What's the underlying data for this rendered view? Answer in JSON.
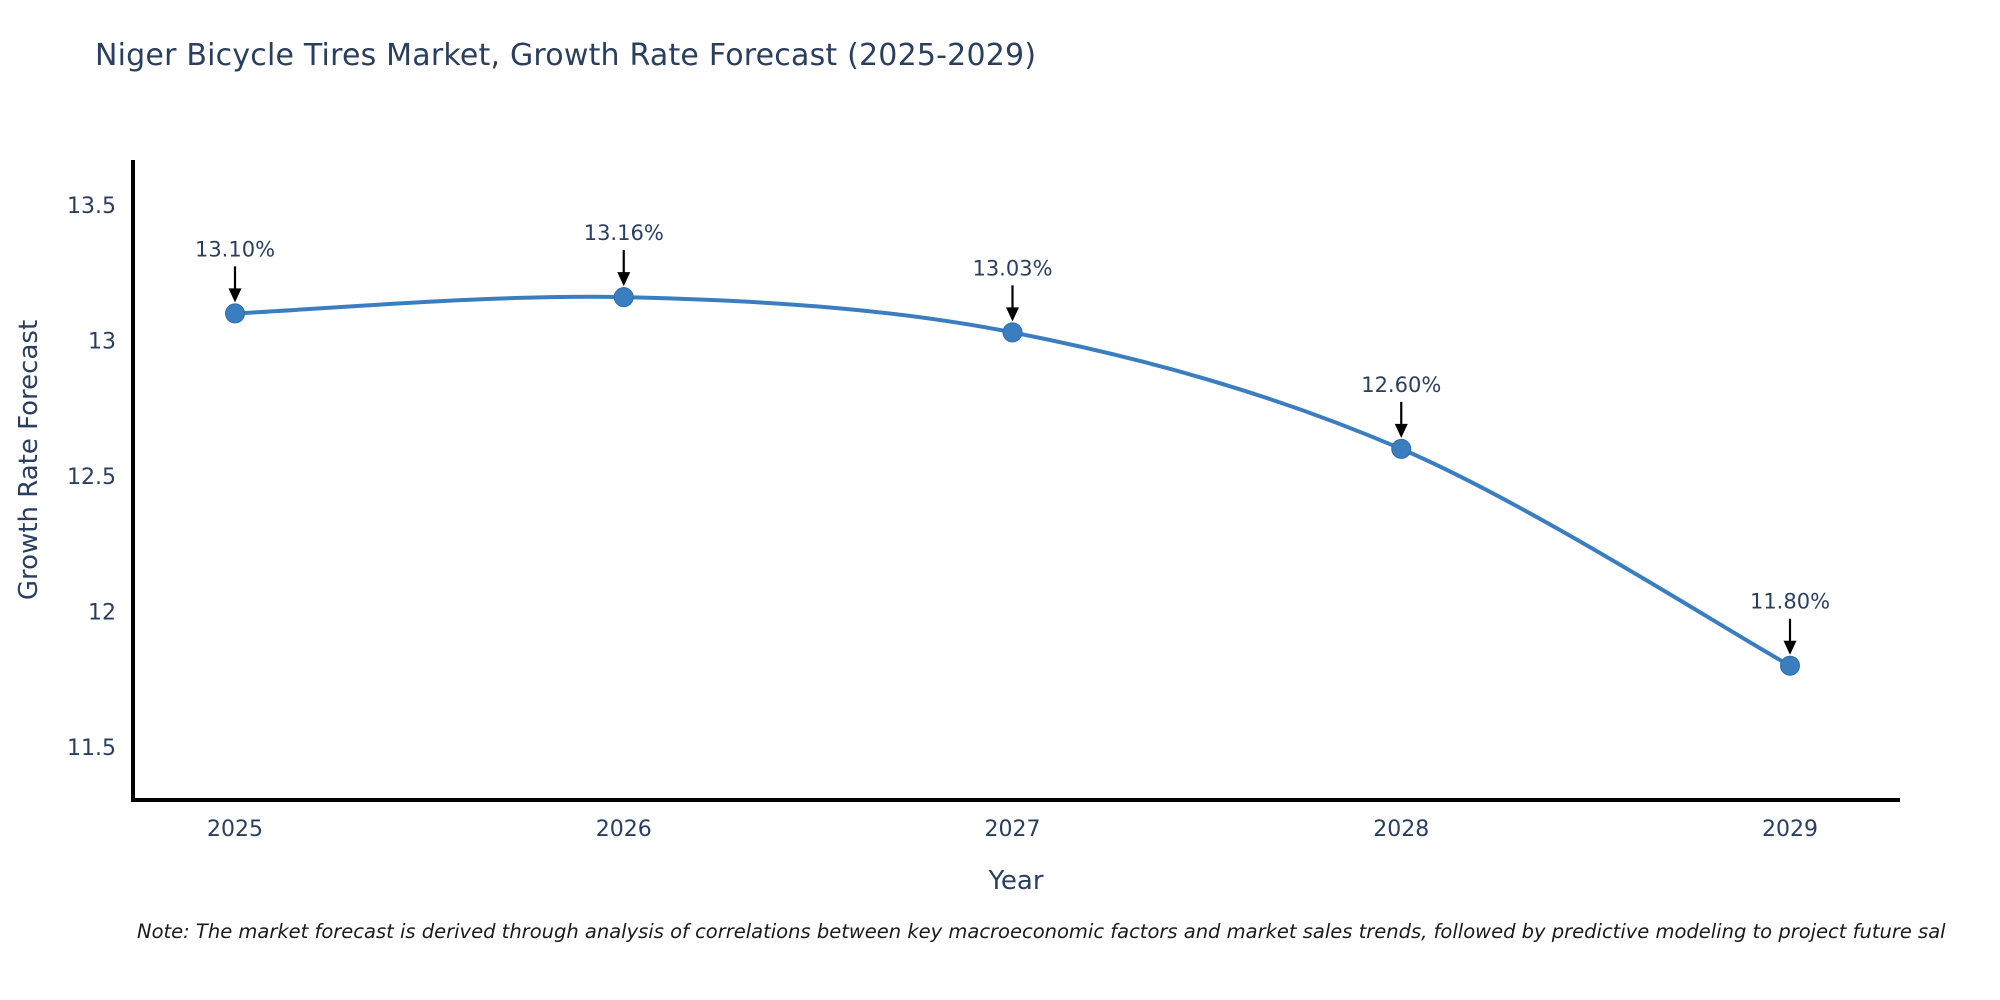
{
  "header": {
    "title": "Niger Bicycle Tires Market, Growth Rate Forecast (2025-2029)"
  },
  "chart_data": {
    "type": "line",
    "title": "Niger Bicycle Tires Market, Growth Rate Forecast (2025-2029)",
    "x": [
      2025,
      2026,
      2027,
      2028,
      2029
    ],
    "y": [
      13.1,
      13.16,
      13.03,
      12.6,
      11.8
    ],
    "point_labels": [
      "13.10%",
      "13.16%",
      "13.03%",
      "12.60%",
      "11.80%"
    ],
    "xlabel": "Year",
    "ylabel": "Growth Rate Forecast",
    "x_tick_labels": [
      "2025",
      "2026",
      "2027",
      "2028",
      "2029"
    ],
    "y_ticks": [
      13.5,
      13,
      12.5,
      12,
      11.5
    ],
    "y_tick_labels": [
      "13.5",
      "13",
      "12.5",
      "12",
      "11.5"
    ],
    "ylim": [
      11.3,
      13.65
    ],
    "line_shape": "spline",
    "grid": false,
    "legend": false,
    "colors": {
      "line": "#3a7ebf",
      "marker": "#3a7ebf",
      "marker_edge": "#2f6da8",
      "axis_line": "#000000",
      "tick_text": "#2a3f5f",
      "annotation_text": "#2a3f5f",
      "annotation_arrow": "#000000"
    }
  },
  "footnote": {
    "text": "Note: The market forecast is derived through analysis of correlations between key macroeconomic factors and market sales trends, followed by predictive modeling to project future sal"
  }
}
